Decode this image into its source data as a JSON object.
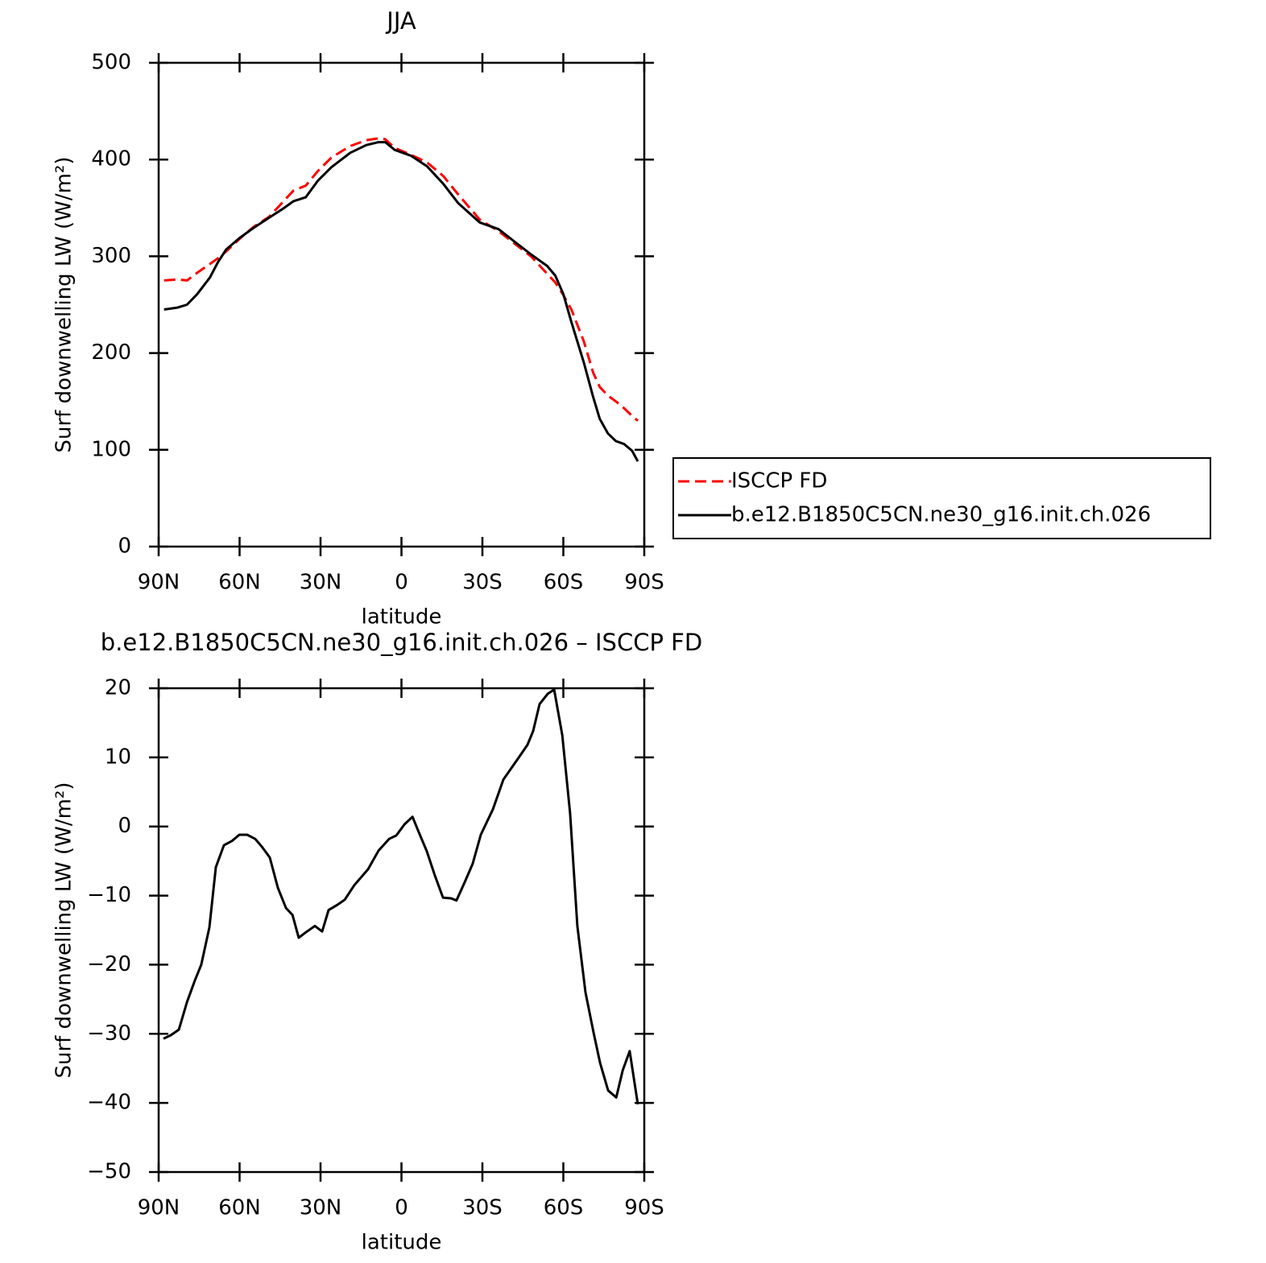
{
  "chart_data": [
    {
      "type": "line",
      "title": "JJA",
      "xlabel": "latitude",
      "ylabel": "Surf downwelling LW (W/m²)",
      "xlim": [
        90,
        -90
      ],
      "xticks": [
        {
          "value": 90,
          "label": "90N"
        },
        {
          "value": 60,
          "label": "60N"
        },
        {
          "value": 30,
          "label": "30N"
        },
        0,
        {
          "value": -30,
          "label": "30S"
        },
        {
          "value": -60,
          "label": "60S"
        },
        {
          "value": -90,
          "label": "90S"
        }
      ],
      "ylim": [
        0,
        500
      ],
      "yticks": [
        0,
        100,
        200,
        300,
        400,
        500
      ],
      "x": [
        88,
        83,
        79.5,
        75.7,
        71,
        68,
        65,
        60,
        55,
        49,
        44,
        40,
        35.5,
        31,
        26,
        19,
        13,
        8.5,
        6,
        2.5,
        -3.5,
        -9.5,
        -15.5,
        -21,
        -29,
        -36,
        -42,
        -48,
        -54,
        -57,
        -60,
        -63,
        -67.6,
        -71,
        -73.5,
        -76.5,
        -79.5,
        -82.5,
        -85.5,
        -87.6
      ],
      "series": [
        {
          "name": "ISCCP FD",
          "color": "#ff0000",
          "dash": true,
          "values": [
            275,
            276,
            275,
            283,
            292,
            298,
            305,
            318,
            330,
            341,
            356,
            368,
            373,
            388,
            402,
            414,
            420,
            422,
            421,
            412,
            405,
            397,
            383,
            364,
            338,
            326,
            313,
            300,
            282,
            273,
            260,
            245,
            212,
            180,
            165,
            156,
            150,
            143,
            135,
            130
          ]
        },
        {
          "name": "b.e12.B1850C5CN.ne30_g16.init.ch.026",
          "color": "#000000",
          "dash": false,
          "values": [
            245,
            247,
            250,
            261,
            278,
            294,
            307,
            319,
            329,
            340,
            349,
            357,
            361,
            378,
            392,
            407,
            415,
            418,
            418,
            410,
            404,
            393,
            375,
            355,
            335,
            328,
            315,
            302,
            290,
            280,
            261,
            232,
            190,
            155,
            132,
            117,
            109,
            106,
            99,
            88
          ]
        }
      ]
    },
    {
      "type": "line",
      "title": "b.e12.B1850C5CN.ne30_g16.init.ch.026 – ISCCP FD",
      "xlabel": "latitude",
      "ylabel": "Surf downwelling LW (W/m²)",
      "xlim": [
        90,
        -90
      ],
      "xticks": [
        {
          "value": 90,
          "label": "90N"
        },
        {
          "value": 60,
          "label": "60N"
        },
        {
          "value": 30,
          "label": "30N"
        },
        0,
        {
          "value": -30,
          "label": "30S"
        },
        {
          "value": -60,
          "label": "60S"
        },
        {
          "value": -90,
          "label": "90S"
        }
      ],
      "ylim": [
        -50,
        20
      ],
      "yticks": [
        {
          "value": -50,
          "label": "−50"
        },
        {
          "value": -40,
          "label": "−40"
        },
        {
          "value": -30,
          "label": "−30"
        },
        {
          "value": -20,
          "label": "−20"
        },
        {
          "value": -10,
          "label": "−10"
        },
        0,
        10,
        20
      ],
      "x": [
        88.2,
        85.5,
        82.5,
        79.5,
        76.6,
        74.2,
        71.2,
        68.8,
        65.8,
        62.8,
        60.1,
        57.2,
        54.2,
        51.8,
        48.8,
        45.8,
        42.8,
        40.4,
        38.1,
        35.4,
        32.1,
        29.4,
        27,
        24,
        21,
        17.5,
        12.4,
        8.5,
        4.6,
        1.9,
        -1.1,
        -4.1,
        -6.4,
        -9.4,
        -12.4,
        -15.4,
        -18.4,
        -20.4,
        -23.4,
        -26.4,
        -29.4,
        -33.9,
        -37.8,
        -43.7,
        -46.7,
        -48.8,
        -51.2,
        -54.2,
        -56.6,
        -59.6,
        -62.5,
        -65.2,
        -68.2,
        -71.2,
        -73.6,
        -76.6,
        -79.6,
        -82,
        -84.6,
        -87.6
      ],
      "series": [
        {
          "color": "#000000",
          "dash": false,
          "values": [
            -30.7,
            -30.2,
            -29.4,
            -25.4,
            -22.3,
            -20,
            -14.6,
            -5.9,
            -2.7,
            -2.1,
            -1.2,
            -1.2,
            -1.8,
            -2.9,
            -4.5,
            -8.9,
            -11.8,
            -12.8,
            -16.1,
            -15.3,
            -14.4,
            -15.2,
            -12.1,
            -11.4,
            -10.6,
            -8.5,
            -6.2,
            -3.5,
            -1.8,
            -1.3,
            0.3,
            1.4,
            -0.8,
            -3.6,
            -7.1,
            -10.3,
            -10.4,
            -10.7,
            -8.1,
            -5.4,
            -1.2,
            2.5,
            6.8,
            10.1,
            11.8,
            13.8,
            17.7,
            19.2,
            19.8,
            13.2,
            1.9,
            -14.4,
            -24,
            -29.8,
            -34.2,
            -38.2,
            -39.2,
            -35.3,
            -32.5,
            -40.2
          ]
        }
      ]
    }
  ]
}
